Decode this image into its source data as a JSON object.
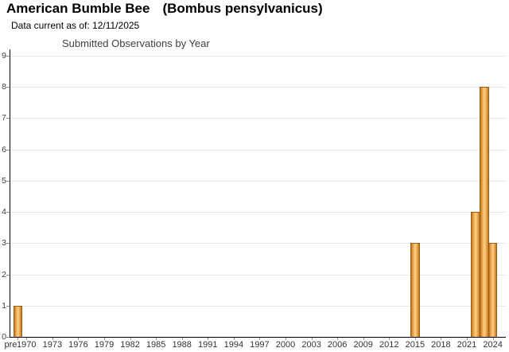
{
  "header": {
    "common_name": "American Bumble Bee",
    "scientific_name": "(Bombus pensylvanicus)",
    "data_current": "Data current as of: 12/11/2025"
  },
  "chart_data": {
    "type": "bar",
    "title": "Submitted Observations by Year",
    "xlabel": "",
    "ylabel": "",
    "ylim": [
      0,
      9
    ],
    "y_ticks": [
      0,
      1,
      2,
      3,
      4,
      5,
      6,
      7,
      8,
      9
    ],
    "x_first_category": "pre 1970",
    "x_year_range": [
      1970,
      2025
    ],
    "x_tick_labels": [
      "pre",
      "1970",
      "1973",
      "1976",
      "1979",
      "1982",
      "1985",
      "1988",
      "1991",
      "1994",
      "1997",
      "2000",
      "2003",
      "2006",
      "2009",
      "2012",
      "2015",
      "2018",
      "2021",
      "2024"
    ],
    "bars": [
      {
        "category": "pre 1970",
        "value": 1
      },
      {
        "category": "2015",
        "value": 3
      },
      {
        "category": "2022",
        "value": 4
      },
      {
        "category": "2023",
        "value": 8
      },
      {
        "category": "2024",
        "value": 3
      }
    ],
    "grid": "horizontal",
    "legend": "none"
  },
  "colors": {
    "background": "#ffffff",
    "title_text": "#000000",
    "chart_title_text": "#3f3f3f",
    "axis": "#000000",
    "gridline": "#e6e6e6",
    "tick_label": "#333333",
    "bar_fill_center": "#fac878",
    "bar_fill_edge": "#b9741f",
    "bar_border": "#9c5c12"
  }
}
